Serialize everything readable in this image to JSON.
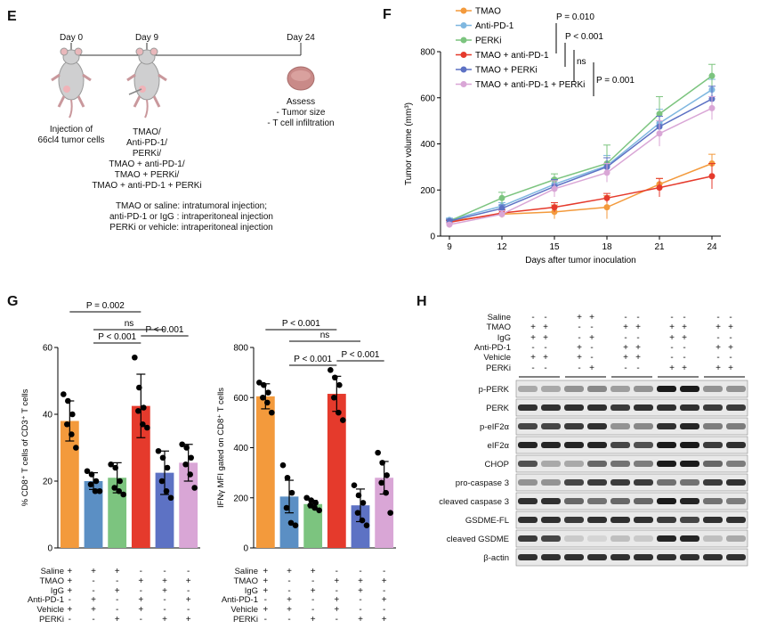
{
  "panels": {
    "E": "E",
    "F": "F",
    "G": "G",
    "H": "H"
  },
  "panelE": {
    "day0": "Day 0",
    "day9": "Day 9",
    "day24": "Day 24",
    "injection": [
      "Injection of",
      "66cl4 tumor cells"
    ],
    "treatments": [
      "TMAO/",
      "Anti-PD-1/",
      "PERKi/",
      "TMAO + anti-PD-1/",
      "TMAO + PERKi/",
      "TMAO + anti-PD-1 + PERKi"
    ],
    "assess": [
      "Assess",
      "- Tumor size",
      "- T cell infiltration"
    ],
    "notes": [
      "TMAO or saline: intratumoral injection;",
      "anti-PD-1 or IgG : intraperitoneal injection",
      "PERKi or vehicle: intraperitoneal injection"
    ]
  },
  "panelF": {
    "chart_data": {
      "type": "line",
      "xlabel": "Days after tumor inoculation",
      "ylabel": "Tumor volume (mm³)",
      "x": [
        9,
        12,
        15,
        18,
        21,
        24
      ],
      "ylim": [
        0,
        800
      ],
      "yticks": [
        0,
        200,
        400,
        600,
        800
      ],
      "series": [
        {
          "name": "TMAO",
          "color": "#f39a3c",
          "values": [
            65,
            95,
            105,
            125,
            225,
            315
          ],
          "err": [
            8,
            15,
            30,
            50,
            25,
            40
          ]
        },
        {
          "name": "Anti-PD-1",
          "color": "#7fb7e0",
          "values": [
            70,
            130,
            225,
            305,
            490,
            635
          ],
          "err": [
            8,
            15,
            25,
            45,
            60,
            45
          ]
        },
        {
          "name": "PERKi",
          "color": "#7cc47f",
          "values": [
            65,
            165,
            245,
            315,
            530,
            695
          ],
          "err": [
            8,
            25,
            25,
            80,
            75,
            50
          ]
        },
        {
          "name": "TMAO + anti-PD-1",
          "color": "#e53a2c",
          "values": [
            60,
            100,
            125,
            165,
            210,
            260
          ],
          "err": [
            8,
            15,
            20,
            20,
            40,
            55
          ]
        },
        {
          "name": "TMAO + PERKi",
          "color": "#5d72c4",
          "values": [
            65,
            120,
            215,
            300,
            475,
            595
          ],
          "err": [
            8,
            15,
            30,
            40,
            45,
            55
          ]
        },
        {
          "name": "TMAO + anti-PD-1 + PERKi",
          "color": "#d9a6d6",
          "values": [
            50,
            95,
            205,
            275,
            445,
            555
          ],
          "err": [
            8,
            15,
            35,
            40,
            55,
            50
          ]
        }
      ],
      "stats": [
        "P = 0.010",
        "P < 0.001",
        "ns",
        "P = 0.001"
      ]
    }
  },
  "panelG1": {
    "chart_data": {
      "type": "bar",
      "ylabel": "% CD8⁺ T cells of CD3⁺ T cells",
      "ylim": [
        0,
        60
      ],
      "yticks": [
        0,
        20,
        40,
        60
      ],
      "values": [
        38,
        20,
        21,
        42.5,
        22.5,
        25.5
      ],
      "err": [
        6,
        2.5,
        4.5,
        9.5,
        6.5,
        5.5
      ],
      "points": [
        [
          46,
          44,
          40,
          37,
          34,
          30
        ],
        [
          23,
          22,
          20,
          19,
          17,
          17
        ],
        [
          25,
          24,
          20,
          18,
          17,
          16
        ],
        [
          57,
          48,
          42,
          41,
          37,
          36
        ],
        [
          29,
          27,
          24,
          20,
          17,
          15
        ],
        [
          31,
          30,
          27,
          25,
          22,
          18
        ]
      ],
      "stats": [
        "P = 0.002",
        "ns",
        "P < 0.001",
        "P < 0.001"
      ]
    }
  },
  "panelG2": {
    "chart_data": {
      "type": "bar",
      "ylabel": "IFNγ MFI gated on CD8⁺ T cells",
      "ylim": [
        0,
        800
      ],
      "yticks": [
        0,
        200,
        400,
        600,
        800
      ],
      "values": [
        605,
        205,
        175,
        615,
        170,
        280
      ],
      "err": [
        50,
        65,
        15,
        70,
        65,
        65
      ],
      "points": [
        [
          660,
          650,
          620,
          600,
          580,
          540
        ],
        [
          330,
          280,
          220,
          160,
          100,
          90
        ],
        [
          200,
          190,
          180,
          170,
          160,
          150
        ],
        [
          710,
          680,
          650,
          600,
          540,
          510
        ],
        [
          250,
          210,
          180,
          140,
          110,
          90
        ],
        [
          380,
          340,
          290,
          260,
          220,
          140
        ]
      ],
      "stats": [
        "P < 0.001",
        "ns",
        "P < 0.001",
        "P < 0.001"
      ]
    }
  },
  "barColors": [
    "#f39a3c",
    "#5b8fc4",
    "#7cc47f",
    "#e53a2c",
    "#5d72c4",
    "#d9a6d6"
  ],
  "conditions": {
    "labels": [
      "Saline",
      "TMAO",
      "IgG",
      "Anti-PD-1",
      "Vehicle",
      "PERKi"
    ],
    "signs": [
      [
        "+",
        "+",
        "+",
        "-",
        "-",
        "-"
      ],
      [
        "+",
        "-",
        "-",
        "+",
        "+",
        "+"
      ],
      [
        "+",
        "-",
        "+",
        "-",
        "+",
        "-"
      ],
      [
        "-",
        "+",
        "-",
        "+",
        "-",
        "+"
      ],
      [
        "+",
        "+",
        "-",
        "+",
        "-",
        "-"
      ],
      [
        "-",
        "-",
        "+",
        "-",
        "+",
        "+"
      ]
    ]
  },
  "panelH": {
    "conditions": [
      "Saline",
      "TMAO",
      "IgG",
      "Anti-PD-1",
      "Vehicle",
      "PERKi"
    ],
    "signs": [
      [
        "-",
        "-",
        "+",
        "+",
        "-",
        "-",
        "-",
        "-",
        "-",
        "-"
      ],
      [
        "+",
        "+",
        "-",
        "-",
        "+",
        "+",
        "+",
        "+",
        "+",
        "+"
      ],
      [
        "+",
        "+",
        "-",
        "+",
        "-",
        "-",
        "+",
        "+",
        "-",
        "-"
      ],
      [
        "-",
        "-",
        "+",
        "-",
        "+",
        "+",
        "-",
        "-",
        "+",
        "+"
      ],
      [
        "+",
        "+",
        "+",
        "-",
        "+",
        "+",
        "-",
        "-",
        "-",
        "-"
      ],
      [
        "-",
        "-",
        "-",
        "+",
        "-",
        "-",
        "+",
        "+",
        "+",
        "+"
      ]
    ],
    "rows": [
      "p-PERK",
      "PERK",
      "p-eIF2α",
      "eIF2α",
      "CHOP",
      "pro-caspase 3",
      "cleaved caspase 3",
      "GSDME-FL",
      "cleaved GSDME",
      "β-actin"
    ]
  }
}
